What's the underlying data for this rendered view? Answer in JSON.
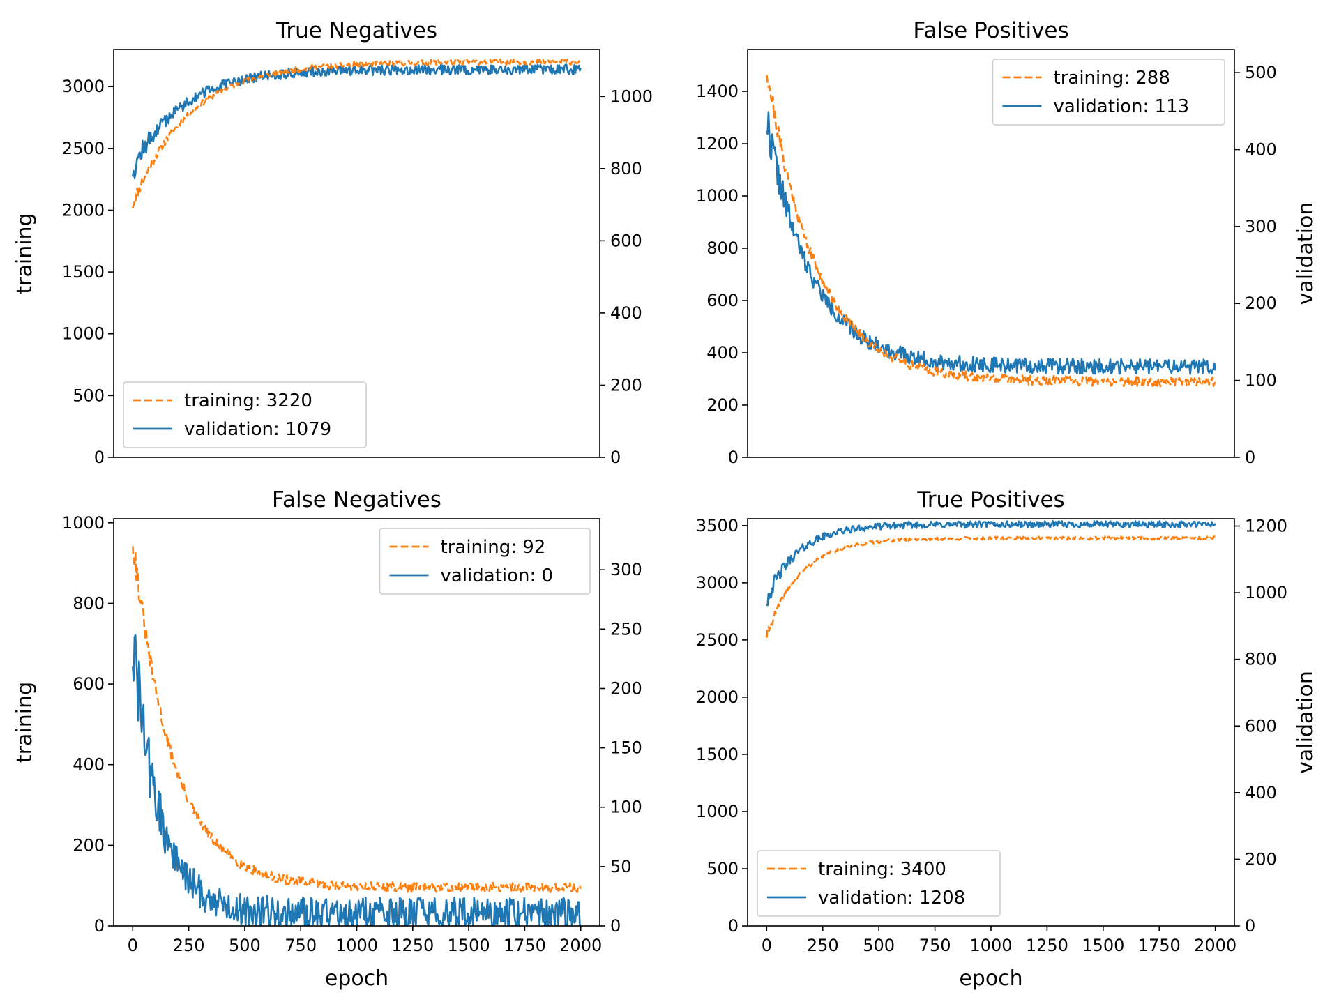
{
  "colors": {
    "training": "#ff7f0e",
    "validation": "#1f77b4"
  },
  "chart_data": [
    {
      "type": "line",
      "title": "True Negatives",
      "xlabel": "",
      "ylabel": "training",
      "y2label": "",
      "xlim": [
        -85,
        2085
      ],
      "ylim": [
        0,
        3300
      ],
      "y2lim": [
        0,
        1130
      ],
      "xticks": [],
      "yticks": [
        0,
        500,
        1000,
        1500,
        2000,
        2500,
        3000
      ],
      "y2ticks": [
        0,
        200,
        400,
        600,
        800,
        1000
      ],
      "legend_position": "lower-left",
      "series": [
        {
          "name": "training: 3220",
          "axis": "left",
          "style": "dashed",
          "color": "#ff7f0e",
          "start": 2050,
          "end": 3220,
          "plateau": 3200,
          "tau": 250,
          "noise": 22,
          "seed": 11
        },
        {
          "name": "validation: 1079",
          "axis": "right",
          "style": "solid",
          "color": "#1f77b4",
          "start": 800,
          "end": 1079,
          "plateau": 1075,
          "tau": 220,
          "noise": 14,
          "seed": 12
        }
      ]
    },
    {
      "type": "line",
      "title": "False Positives",
      "xlabel": "",
      "ylabel": "",
      "y2label": "validation",
      "xlim": [
        -85,
        2085
      ],
      "ylim": [
        0,
        1560
      ],
      "y2lim": [
        0,
        530
      ],
      "xticks": [],
      "yticks": [
        0,
        200,
        400,
        600,
        800,
        1000,
        1200,
        1400
      ],
      "y2ticks": [
        0,
        100,
        200,
        300,
        400,
        500
      ],
      "legend_position": "upper-right",
      "series": [
        {
          "name": "training: 288",
          "axis": "left",
          "style": "dashed",
          "color": "#ff7f0e",
          "start": 1490,
          "end": 288,
          "plateau": 290,
          "tau": 220,
          "noise": 18,
          "seed": 21
        },
        {
          "name": "validation: 113",
          "axis": "right",
          "style": "solid",
          "color": "#1f77b4",
          "start": 440,
          "end": 113,
          "plateau": 118,
          "tau": 200,
          "noise": 10,
          "seed": 22
        }
      ]
    },
    {
      "type": "line",
      "title": "False Negatives",
      "xlabel": "epoch",
      "ylabel": "training",
      "y2label": "",
      "xlim": [
        -85,
        2085
      ],
      "ylim": [
        0,
        1010
      ],
      "y2lim": [
        0,
        343
      ],
      "xticks": [
        0,
        250,
        500,
        750,
        1000,
        1250,
        1500,
        1750,
        2000
      ],
      "yticks": [
        0,
        200,
        400,
        600,
        800,
        1000
      ],
      "y2ticks": [
        0,
        50,
        100,
        150,
        200,
        250,
        300
      ],
      "legend_position": "upper-right",
      "series": [
        {
          "name": "training: 92",
          "axis": "left",
          "style": "dashed",
          "color": "#ff7f0e",
          "start": 960,
          "end": 92,
          "plateau": 95,
          "tau": 180,
          "noise": 12,
          "seed": 31
        },
        {
          "name": "validation: 0",
          "axis": "right",
          "style": "solid",
          "color": "#1f77b4",
          "start": 240,
          "end": 0,
          "plateau": 10,
          "tau": 120,
          "noise": 14,
          "seed": 32
        }
      ]
    },
    {
      "type": "line",
      "title": "True Positives",
      "xlabel": "epoch",
      "ylabel": "",
      "y2label": "validation",
      "xlim": [
        -85,
        2085
      ],
      "ylim": [
        0,
        3560
      ],
      "y2lim": [
        0,
        1222
      ],
      "xticks": [
        0,
        250,
        500,
        750,
        1000,
        1250,
        1500,
        1750,
        2000
      ],
      "yticks": [
        0,
        500,
        1000,
        1500,
        2000,
        2500,
        3000,
        3500
      ],
      "y2ticks": [
        0,
        200,
        400,
        600,
        800,
        1000,
        1200
      ],
      "legend_position": "lower-left",
      "series": [
        {
          "name": "training: 3400",
          "axis": "left",
          "style": "dashed",
          "color": "#ff7f0e",
          "start": 2540,
          "end": 3400,
          "plateau": 3390,
          "tau": 150,
          "noise": 14,
          "seed": 41
        },
        {
          "name": "validation: 1208",
          "axis": "right",
          "style": "solid",
          "color": "#1f77b4",
          "start": 980,
          "end": 1208,
          "plateau": 1205,
          "tau": 140,
          "noise": 10,
          "seed": 42
        }
      ]
    }
  ]
}
